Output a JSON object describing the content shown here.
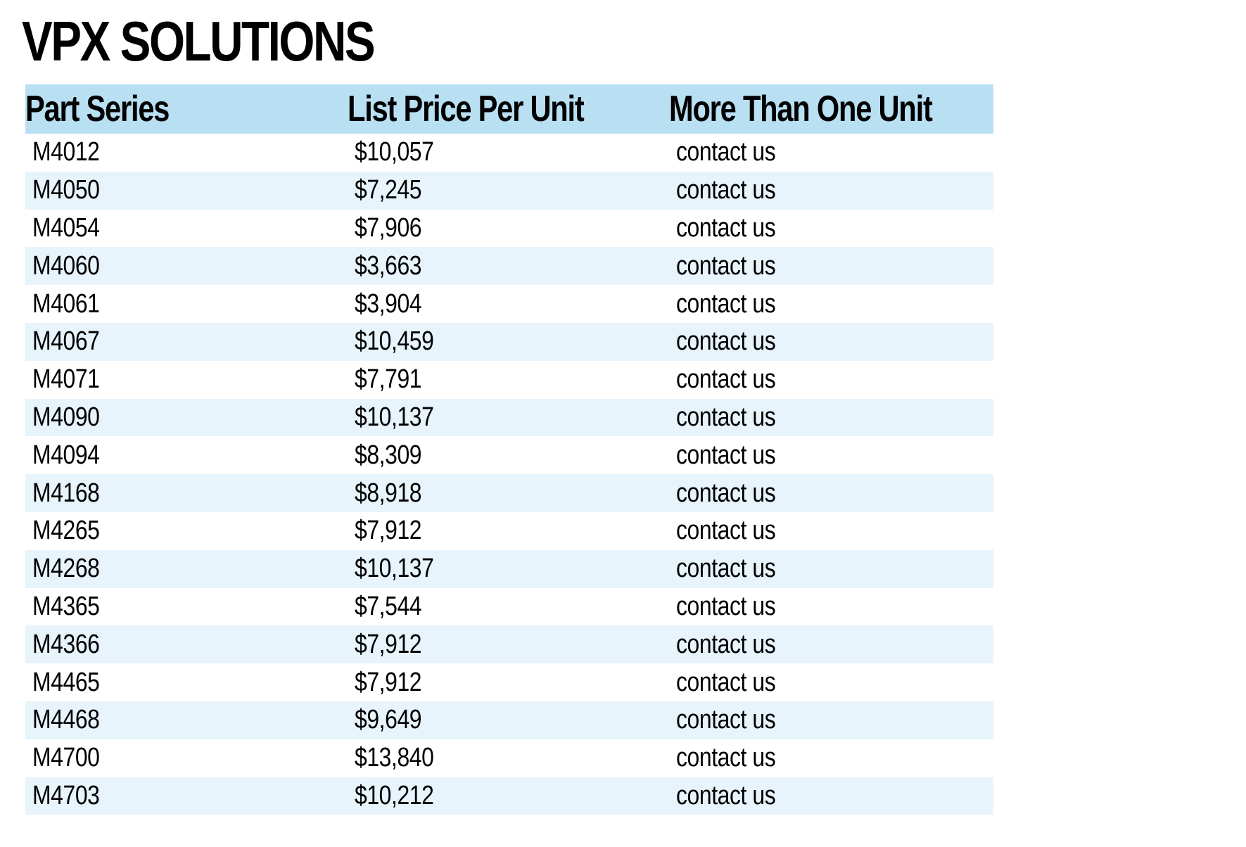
{
  "title": "VPX SOLUTIONS",
  "table": {
    "headers": [
      "Part Series",
      "List Price Per Unit",
      "More Than One Unit"
    ],
    "rows": [
      [
        "M4012",
        "$10,057",
        "contact us"
      ],
      [
        "M4050",
        "$7,245",
        "contact us"
      ],
      [
        "M4054",
        "$7,906",
        "contact us"
      ],
      [
        "M4060",
        "$3,663",
        "contact us"
      ],
      [
        "M4061",
        "$3,904",
        "contact us"
      ],
      [
        "M4067",
        "$10,459",
        "contact us"
      ],
      [
        "M4071",
        "$7,791",
        "contact us"
      ],
      [
        "M4090",
        "$10,137",
        "contact us"
      ],
      [
        "M4094",
        "$8,309",
        "contact us"
      ],
      [
        "M4168",
        "$8,918",
        "contact us"
      ],
      [
        "M4265",
        "$7,912",
        "contact us"
      ],
      [
        "M4268",
        "$10,137",
        "contact us"
      ],
      [
        "M4365",
        "$7,544",
        "contact us"
      ],
      [
        "M4366",
        "$7,912",
        "contact us"
      ],
      [
        "M4465",
        "$7,912",
        "contact us"
      ],
      [
        "M4468",
        "$9,649",
        "contact us"
      ],
      [
        "M4700",
        "$13,840",
        "contact us"
      ],
      [
        "M4703",
        "$10,212",
        "contact us"
      ]
    ]
  },
  "colors": {
    "header_background": "#b8dff2",
    "stripe_background": "#e8f4fb",
    "text": "#000000"
  }
}
